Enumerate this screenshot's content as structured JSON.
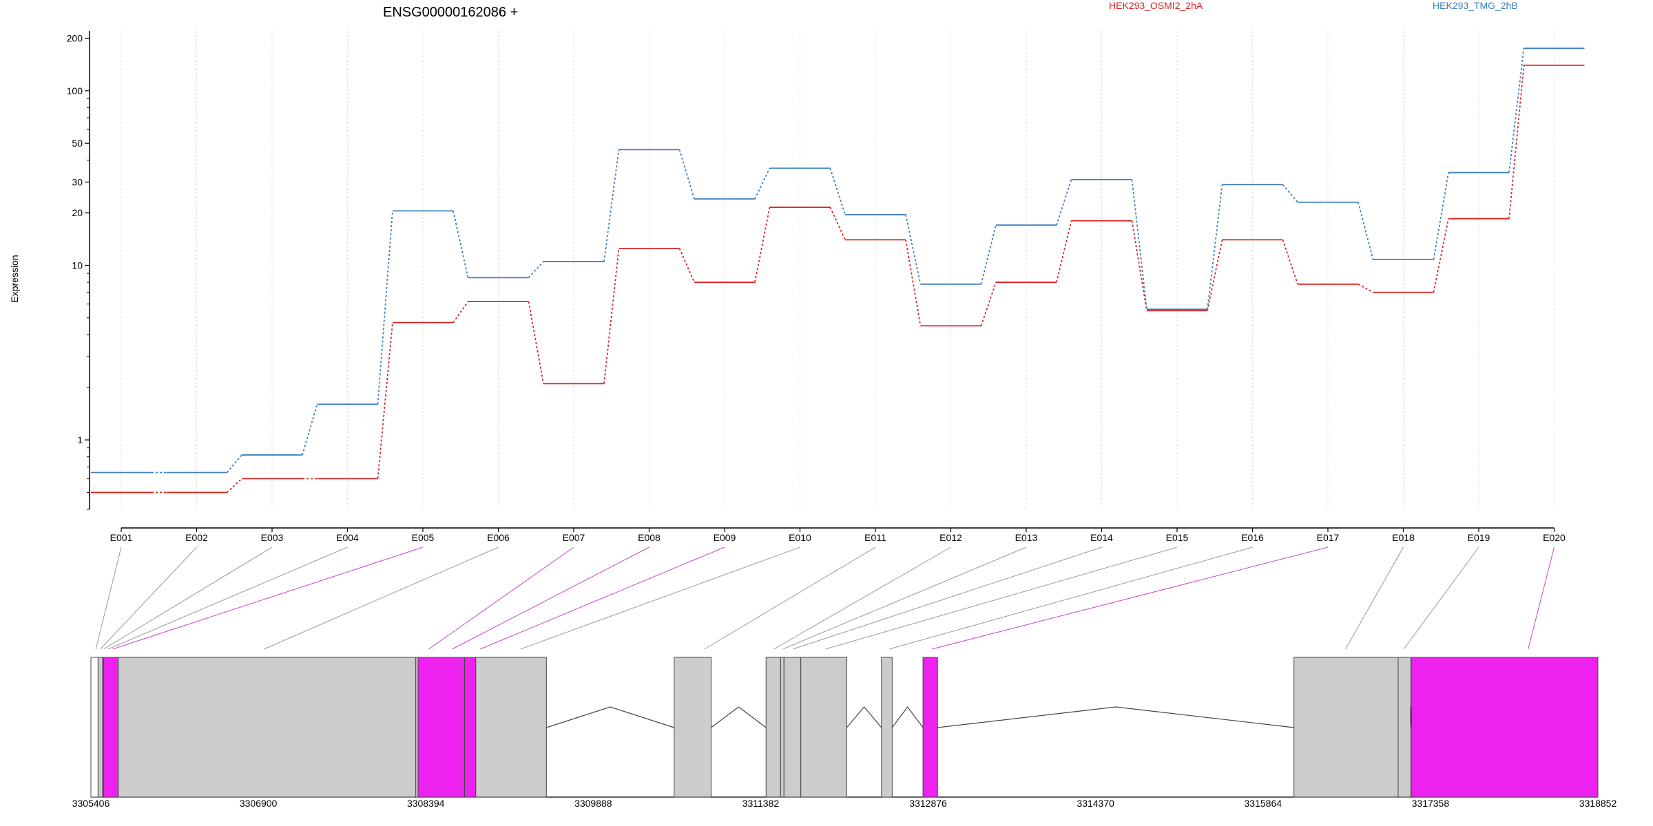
{
  "chart_data": [
    {
      "type": "line",
      "title": "ENSG00000162086 +",
      "xlabel": "",
      "ylabel": "Expression",
      "yscale": "log",
      "ylim": [
        0.4,
        220
      ],
      "yticks": [
        1,
        10,
        20,
        30,
        50,
        100,
        200
      ],
      "grid": "vertical light dotted lines at each exon",
      "legend_position": "top, horizontal",
      "categories": [
        "E001",
        "E002",
        "E003",
        "E004",
        "E005",
        "E006",
        "E007",
        "E008",
        "E009",
        "E010",
        "E011",
        "E012",
        "E013",
        "E014",
        "E015",
        "E016",
        "E017",
        "E018",
        "E019",
        "E020"
      ],
      "series": [
        {
          "name": "HEK293_OSMI2_2hA",
          "color": "#dd2222",
          "values": [
            0.5,
            0.5,
            0.6,
            0.6,
            4.7,
            6.2,
            2.1,
            12.5,
            8.0,
            21.5,
            14.0,
            4.5,
            8.0,
            18.0,
            5.5,
            14.0,
            7.8,
            7.0,
            18.5,
            140
          ]
        },
        {
          "name": "HEK293_TMG_2hB",
          "color": "#3b7fc4",
          "values": [
            0.65,
            0.65,
            0.82,
            1.6,
            20.5,
            8.5,
            10.5,
            46,
            24,
            36,
            19.5,
            7.8,
            17,
            31,
            5.6,
            29,
            23,
            10.8,
            34,
            175
          ]
        }
      ]
    },
    {
      "type": "gene_model",
      "x_ticks": [
        3305406,
        3306900,
        3308394,
        3309888,
        3311382,
        3312876,
        3314370,
        3315864,
        3317358,
        3318852
      ],
      "xlim": [
        3305406,
        3318852
      ],
      "exon_fill": "#cccccc",
      "highlight_fill": "#ee22ee",
      "blocks": [
        {
          "start": 3305406,
          "end": 3305470,
          "fill": "#ffffff"
        },
        {
          "start": 3305470,
          "end": 3305510,
          "fill": "#cccccc"
        },
        {
          "start": 3305510,
          "end": 3305520,
          "fill": "#999999"
        },
        {
          "start": 3305520,
          "end": 3305650,
          "fill": "#ee22ee"
        },
        {
          "start": 3305650,
          "end": 3308305,
          "fill": "#cccccc"
        },
        {
          "start": 3308305,
          "end": 3308325,
          "fill": "#cccccc"
        },
        {
          "start": 3308325,
          "end": 3308740,
          "fill": "#ee22ee"
        },
        {
          "start": 3308740,
          "end": 3308840,
          "fill": "#ee22ee"
        },
        {
          "start": 3308840,
          "end": 3309470,
          "fill": "#cccccc"
        },
        {
          "start": 3310610,
          "end": 3310940,
          "fill": "#cccccc"
        },
        {
          "start": 3311430,
          "end": 3311560,
          "fill": "#cccccc"
        },
        {
          "start": 3311560,
          "end": 3311590,
          "fill": "#cccccc"
        },
        {
          "start": 3311590,
          "end": 3311740,
          "fill": "#cccccc"
        },
        {
          "start": 3311740,
          "end": 3312150,
          "fill": "#cccccc"
        },
        {
          "start": 3312460,
          "end": 3312555,
          "fill": "#cccccc"
        },
        {
          "start": 3312830,
          "end": 3312960,
          "fill": "#ee22ee"
        },
        {
          "start": 3316140,
          "end": 3317070,
          "fill": "#cccccc"
        },
        {
          "start": 3317070,
          "end": 3317180,
          "fill": "#cccccc"
        },
        {
          "start": 3317190,
          "end": 3318852,
          "fill": "#ee22ee"
        }
      ],
      "introns": [
        [
          3309470,
          3310610
        ],
        [
          3310940,
          3311430
        ],
        [
          3312150,
          3312460
        ],
        [
          3312555,
          3312830
        ],
        [
          3312960,
          3316140
        ],
        [
          3317180,
          3317190
        ]
      ],
      "exon_links": [
        {
          "exon": "E001",
          "pos": 3305450,
          "color": "#999999"
        },
        {
          "exon": "E002",
          "pos": 3305490,
          "color": "#999999"
        },
        {
          "exon": "E003",
          "pos": 3305520,
          "color": "#999999"
        },
        {
          "exon": "E004",
          "pos": 3305560,
          "color": "#999999"
        },
        {
          "exon": "E005",
          "pos": 3305600,
          "color": "#cc44cc"
        },
        {
          "exon": "E006",
          "pos": 3306950,
          "color": "#999999"
        },
        {
          "exon": "E007",
          "pos": 3308420,
          "color": "#cc44cc"
        },
        {
          "exon": "E008",
          "pos": 3308630,
          "color": "#cc44cc"
        },
        {
          "exon": "E009",
          "pos": 3308880,
          "color": "#cc44cc"
        },
        {
          "exon": "E010",
          "pos": 3309240,
          "color": "#999999"
        },
        {
          "exon": "E011",
          "pos": 3310880,
          "color": "#999999"
        },
        {
          "exon": "E012",
          "pos": 3311500,
          "color": "#999999"
        },
        {
          "exon": "E013",
          "pos": 3311580,
          "color": "#999999"
        },
        {
          "exon": "E014",
          "pos": 3311670,
          "color": "#999999"
        },
        {
          "exon": "E015",
          "pos": 3311960,
          "color": "#999999"
        },
        {
          "exon": "E016",
          "pos": 3312530,
          "color": "#999999"
        },
        {
          "exon": "E017",
          "pos": 3312910,
          "color": "#cc44cc"
        },
        {
          "exon": "E018",
          "pos": 3316600,
          "color": "#999999"
        },
        {
          "exon": "E019",
          "pos": 3317120,
          "color": "#999999"
        },
        {
          "exon": "E020",
          "pos": 3318230,
          "color": "#cc44cc"
        }
      ]
    }
  ]
}
